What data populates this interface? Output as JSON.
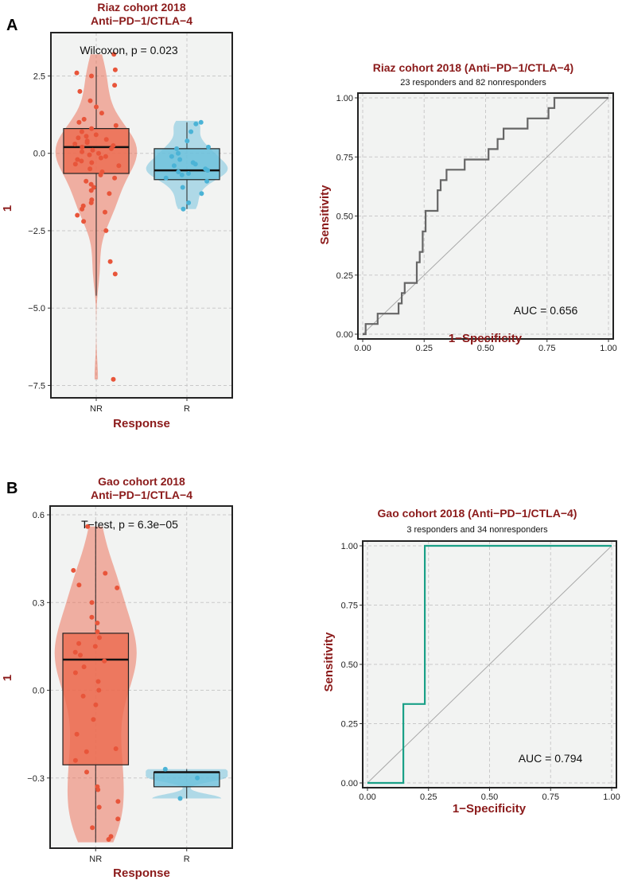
{
  "panels": [
    {
      "letter": "A"
    },
    {
      "letter": "B"
    }
  ],
  "chart_data": [
    {
      "type": "violin-box",
      "panel": "A",
      "title_line1": "Riaz cohort 2018",
      "title_line2": "Anti−PD−1/CTLA−4",
      "annotation": "Wilcoxon, p = 0.023",
      "xlabel": "Response",
      "ylabel": "1",
      "ylim": [
        -7.9,
        3.9
      ],
      "yticks": [
        2.5,
        0.0,
        -2.5,
        -5.0,
        -7.5
      ],
      "ytick_labels": [
        "2.5",
        "0.0",
        "−2.5",
        "−5.0",
        "−7.5"
      ],
      "categories": [
        "NR",
        "R"
      ],
      "colors": {
        "NR": "#ec6a4f",
        "R": "#6cc0dc"
      },
      "groups": [
        {
          "name": "NR",
          "min": -4.6,
          "q1": -0.65,
          "median": 0.2,
          "q3": 0.8,
          "max": 2.8,
          "violin_min": -7.3,
          "violin_max": 3.2,
          "points": [
            3.2,
            2.7,
            2.6,
            2.5,
            2.2,
            2.0,
            1.7,
            1.5,
            1.3,
            1.1,
            1.0,
            0.9,
            0.8,
            0.7,
            0.6,
            0.55,
            0.5,
            0.45,
            0.4,
            0.35,
            0.3,
            0.25,
            0.2,
            0.15,
            0.1,
            0.05,
            0.0,
            -0.05,
            -0.1,
            -0.15,
            -0.2,
            -0.25,
            -0.3,
            -0.35,
            -0.4,
            -0.5,
            -0.6,
            -0.7,
            -0.8,
            -0.9,
            -1.0,
            -1.1,
            -1.2,
            -1.3,
            -1.5,
            -1.6,
            -1.7,
            -1.8,
            -1.9,
            -2.0,
            -2.2,
            -2.5,
            -3.5,
            -3.9,
            -7.3
          ]
        },
        {
          "name": "R",
          "min": -1.8,
          "q1": -0.85,
          "median": -0.55,
          "q3": 0.15,
          "max": 1.0,
          "violin_min": -1.8,
          "violin_max": 1.05,
          "points": [
            1.0,
            0.95,
            0.7,
            0.4,
            0.2,
            0.15,
            0.0,
            -0.1,
            -0.2,
            -0.3,
            -0.35,
            -0.4,
            -0.5,
            -0.55,
            -0.6,
            -0.65,
            -0.7,
            -0.8,
            -0.9,
            -1.1,
            -1.3,
            -1.6,
            -1.8
          ]
        }
      ]
    },
    {
      "type": "line",
      "panel": "A-roc",
      "title": "Riaz cohort 2018 (Anti−PD−1/CTLA−4)",
      "subtitle": "23 responders and 82 nonresponders",
      "xlabel": "1−Specificity",
      "ylabel": "Sensitivity",
      "annotation": "AUC = 0.656",
      "xlim": [
        0,
        1
      ],
      "ylim": [
        0,
        1
      ],
      "ticks": [
        0.0,
        0.25,
        0.5,
        0.75,
        1.0
      ],
      "tick_labels": [
        "0.00",
        "0.25",
        "0.50",
        "0.75",
        "1.00"
      ],
      "line_color": "#666666",
      "x": [
        0,
        0.012,
        0.012,
        0.061,
        0.061,
        0.146,
        0.146,
        0.159,
        0.159,
        0.171,
        0.171,
        0.22,
        0.22,
        0.232,
        0.232,
        0.244,
        0.244,
        0.256,
        0.256,
        0.305,
        0.305,
        0.317,
        0.317,
        0.341,
        0.341,
        0.415,
        0.415,
        0.512,
        0.512,
        0.537,
        0.537,
        0.549,
        0.549,
        0.573,
        0.573,
        0.634,
        0.634,
        0.671,
        0.671,
        0.756,
        0.756,
        0.78,
        0.78,
        1.0
      ],
      "y": [
        0,
        0,
        0.043,
        0.043,
        0.087,
        0.087,
        0.13,
        0.13,
        0.174,
        0.174,
        0.217,
        0.217,
        0.304,
        0.304,
        0.348,
        0.348,
        0.435,
        0.435,
        0.522,
        0.522,
        0.609,
        0.609,
        0.652,
        0.652,
        0.696,
        0.696,
        0.739,
        0.739,
        0.783,
        0.783,
        0.783,
        0.783,
        0.826,
        0.826,
        0.87,
        0.87,
        0.87,
        0.87,
        0.913,
        0.913,
        0.957,
        0.957,
        1.0,
        1.0
      ]
    },
    {
      "type": "violin-box",
      "panel": "B",
      "title_line1": "Gao cohort 2018",
      "title_line2": "Anti−PD−1/CTLA−4",
      "annotation": "T−test, p = 6.3e−05",
      "xlabel": "Response",
      "ylabel": "1",
      "ylim": [
        -0.54,
        0.63
      ],
      "yticks": [
        0.6,
        0.3,
        0.0,
        -0.3
      ],
      "ytick_labels": [
        "0.6",
        "0.3",
        "0.0",
        "−0.3"
      ],
      "categories": [
        "NR",
        "R"
      ],
      "colors": {
        "NR": "#ec6a4f",
        "R": "#6cc0dc"
      },
      "groups": [
        {
          "name": "NR",
          "min": -0.52,
          "q1": -0.255,
          "median": 0.105,
          "q3": 0.195,
          "max": 0.56,
          "violin_min": -0.52,
          "violin_max": 0.56,
          "points": [
            0.56,
            0.41,
            0.4,
            0.36,
            0.35,
            0.3,
            0.25,
            0.23,
            0.2,
            0.18,
            0.16,
            0.15,
            0.13,
            0.12,
            0.1,
            0.08,
            0.06,
            0.03,
            0.0,
            -0.02,
            -0.05,
            -0.1,
            -0.15,
            -0.2,
            -0.21,
            -0.24,
            -0.28,
            -0.33,
            -0.34,
            -0.38,
            -0.4,
            -0.44,
            -0.47,
            -0.5,
            -0.51
          ]
        },
        {
          "name": "R",
          "min": -0.37,
          "q1": -0.33,
          "median": -0.28,
          "q3": -0.28,
          "max": -0.27,
          "violin_min": -0.37,
          "violin_max": -0.27,
          "points": [
            -0.27,
            -0.3,
            -0.37
          ]
        }
      ]
    },
    {
      "type": "line",
      "panel": "B-roc",
      "title": "Gao cohort 2018 (Anti−PD−1/CTLA−4)",
      "subtitle": "3 responders and 34 nonresponders",
      "xlabel": "1−Specificity",
      "ylabel": "Sensitivity",
      "annotation": "AUC = 0.794",
      "xlim": [
        0,
        1
      ],
      "ylim": [
        0,
        1
      ],
      "ticks": [
        0.0,
        0.25,
        0.5,
        0.75,
        1.0
      ],
      "tick_labels": [
        "0.00",
        "0.25",
        "0.50",
        "0.75",
        "1.00"
      ],
      "line_color": "#1aa087",
      "x": [
        0,
        0.147,
        0.147,
        0.235,
        0.235,
        1.0
      ],
      "y": [
        0,
        0,
        0.333,
        0.333,
        1.0,
        1.0
      ]
    }
  ]
}
